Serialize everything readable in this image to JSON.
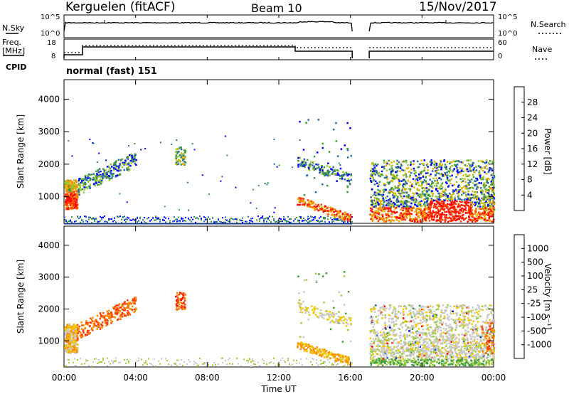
{
  "header": {
    "station": "Kerguelen (fitACF)",
    "beam": "Beam 10",
    "date": "15/Nov/2017"
  },
  "strips": {
    "nsky_label": "N.Sky",
    "nsky_ticks": [
      "10^5",
      "10^0"
    ],
    "nsearch_label": "N.Search",
    "nsearch_ticks": [
      "10^5",
      "10^0"
    ],
    "freq_label_line1": "Freq.",
    "freq_label_line2": "[MHz]",
    "freq_ticks": [
      "18",
      "8"
    ],
    "nave_label": "Nave",
    "nave_ticks": [
      "60",
      "0"
    ],
    "cpid_label": "CPID",
    "cpid_text": "normal (fast) 151"
  },
  "chart_data": [
    {
      "type": "heatmap",
      "panel": "power",
      "xlabel": "",
      "ylabel": "Slant Range [km]",
      "yticks": [
        1000,
        2000,
        3000,
        4000
      ],
      "ylim": [
        180,
        4600
      ],
      "colorbar_label": "Power [dB]",
      "colorbar_ticks": [
        "28",
        "24",
        "20",
        "16",
        "12",
        "8",
        "4"
      ],
      "colorbar_colors": [
        "#ff0000",
        "#ff4000",
        "#ff8c00",
        "#e8b400",
        "#9cc832",
        "#3c9c3c",
        "#2c6ca4",
        "#0000ff"
      ],
      "features": [
        {
          "t_start": "00:00",
          "t_end": "00:45",
          "r_start": 600,
          "r_end": 1600,
          "level": "high"
        },
        {
          "t_start": "00:45",
          "t_end": "04:00",
          "r_start": 1200,
          "r_end": 2300,
          "level": "low"
        },
        {
          "t_start": "06:15",
          "t_end": "06:45",
          "r_start": 2000,
          "r_end": 2600,
          "level": "medium"
        },
        {
          "t_start": "13:00",
          "t_end": "16:00",
          "r_start": 400,
          "r_end": 2200,
          "level": "medium"
        },
        {
          "t_start": "17:00",
          "t_end": "24:00",
          "r_start": 250,
          "r_end": 2100,
          "level": "high"
        }
      ]
    },
    {
      "type": "heatmap",
      "panel": "velocity",
      "xlabel": "Time UT",
      "ylabel": "Slant Range [km]",
      "xticks": [
        "00:00",
        "04:00",
        "08:00",
        "12:00",
        "16:00",
        "20:00",
        "00:00"
      ],
      "yticks": [
        1000,
        2000,
        3000,
        4000
      ],
      "ylim": [
        180,
        4600
      ],
      "colorbar_label": "Velocity [m s⁻¹]",
      "colorbar_ticks": [
        "1000",
        "500",
        "100",
        "25",
        "-25",
        "-100",
        "-500",
        "-1000"
      ],
      "colorbar_colors": [
        "#0000c8",
        "#2060b4",
        "#3c9c3c",
        "#9ccc3c",
        "#c8c8c8",
        "#f0c800",
        "#ff8c00",
        "#ff4000",
        "#ff0000"
      ],
      "features": [
        {
          "t_start": "00:00",
          "t_end": "00:45",
          "r_start": 600,
          "r_end": 1600,
          "level": "negative"
        },
        {
          "t_start": "00:45",
          "t_end": "04:00",
          "r_start": 1200,
          "r_end": 2300,
          "level": "negative"
        },
        {
          "t_start": "06:15",
          "t_end": "06:45",
          "r_start": 2000,
          "r_end": 2600,
          "level": "negative"
        },
        {
          "t_start": "13:00",
          "t_end": "16:00",
          "r_start": 400,
          "r_end": 2200,
          "level": "mixed"
        },
        {
          "t_start": "17:00",
          "t_end": "24:00",
          "r_start": 250,
          "r_end": 2100,
          "level": "near-zero"
        }
      ]
    }
  ]
}
